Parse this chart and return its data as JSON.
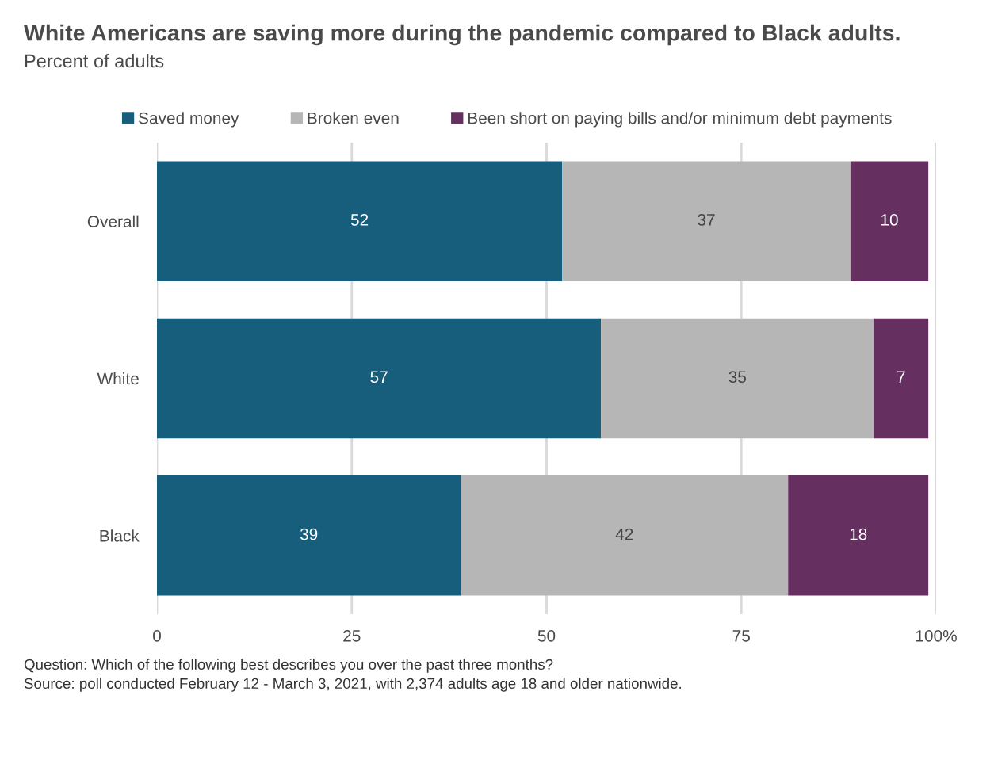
{
  "chart_data": {
    "type": "bar",
    "orientation": "horizontal",
    "stacked": true,
    "title": "White Americans are saving more during the pandemic compared to Black adults.",
    "subtitle": "Percent of adults",
    "categories": [
      "Overall",
      "White",
      "Black"
    ],
    "series": [
      {
        "name": "Saved money",
        "color": "#175d7c",
        "values": [
          52,
          57,
          39
        ]
      },
      {
        "name": "Broken even",
        "color": "#b6b6b6",
        "values": [
          37,
          35,
          42
        ]
      },
      {
        "name": "Been short on paying bills and/or minimum debt payments",
        "color": "#652f60",
        "values": [
          10,
          7,
          18
        ]
      }
    ],
    "xlim": [
      0,
      100
    ],
    "xticks": [
      0,
      25,
      50,
      75,
      {
        "value": 100,
        "label": "100%"
      }
    ],
    "grid": "x",
    "legend": "top",
    "data_labels": true,
    "annotations": [
      "Question: Which of the following best describes you over the past three months?",
      "Source: poll conducted February 12 - March 3, 2021, with 2,374 adults age 18 and older nationwide."
    ]
  }
}
